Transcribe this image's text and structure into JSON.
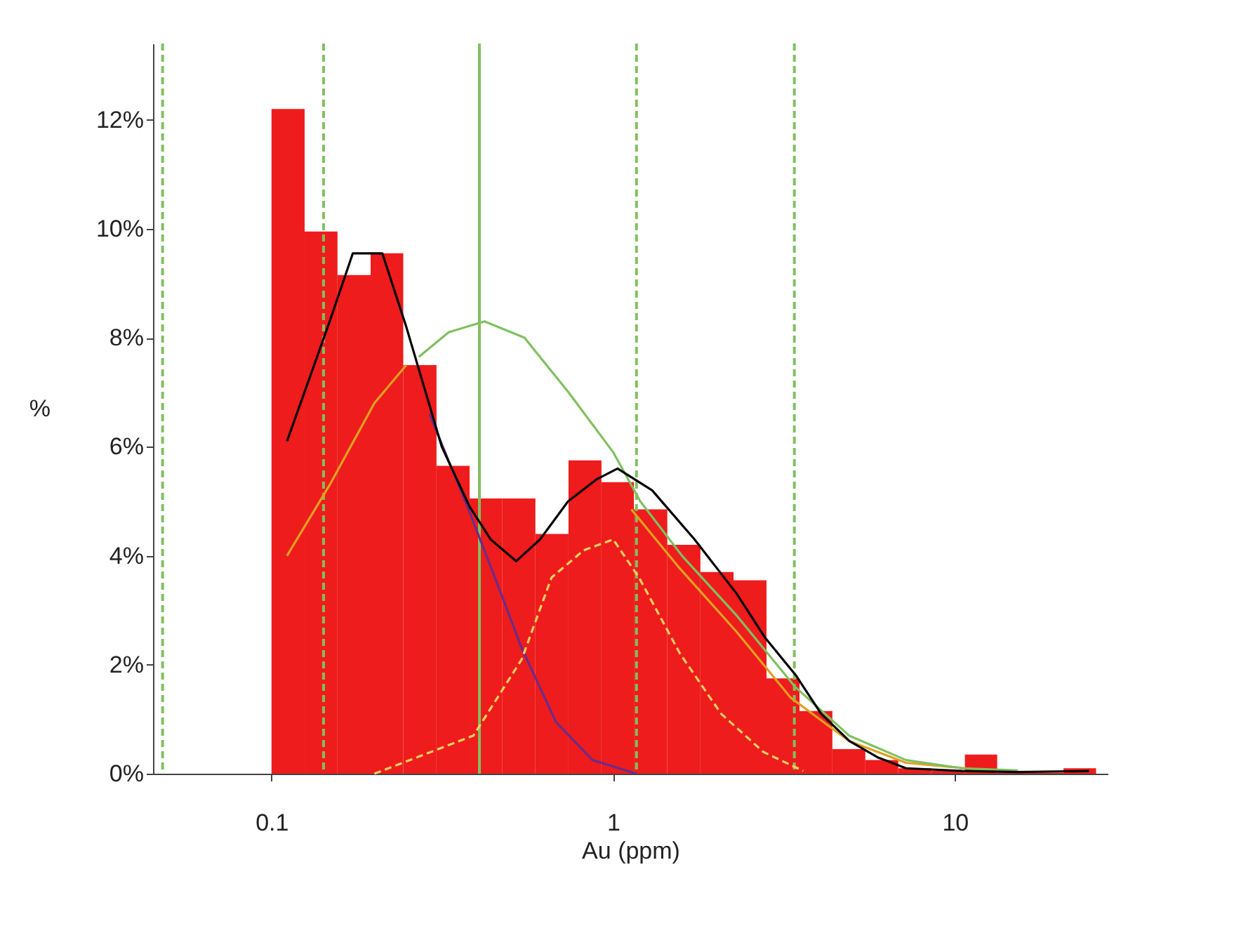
{
  "chart_data": {
    "type": "histogram",
    "xlabel": "Au (ppm)",
    "ylabel": "%",
    "color": "#ee1c1c",
    "bins": [
      0.1,
      0.125,
      0.156,
      0.195,
      0.243,
      0.304,
      0.38,
      0.474,
      0.592,
      0.74,
      0.924,
      1.15,
      1.44,
      1.8,
      2.25,
      2.81,
      3.51,
      4.38,
      5.47,
      6.83,
      8.53,
      10.7,
      13.3,
      16.6,
      20.8,
      25.9
    ],
    "values": [
      12.2,
      9.95,
      9.15,
      9.55,
      7.5,
      5.65,
      5.05,
      5.05,
      4.4,
      5.75,
      5.35,
      4.85,
      4.2,
      3.7,
      3.55,
      1.75,
      1.15,
      0.45,
      0.25,
      0.1,
      0.05,
      0.35,
      0.02,
      0.02,
      0.1
    ],
    "series": [
      {
        "type": "line",
        "color": "#e0a020",
        "line_style": "solid",
        "x": [
          0.111,
          0.148,
          0.2,
          0.248
        ],
        "values": [
          4.0,
          5.3,
          6.8,
          7.5
        ]
      },
      {
        "type": "line",
        "color": "#e0a020",
        "line_style": "solid",
        "x": [
          1.13,
          1.55,
          2.3,
          3.3,
          4.9,
          7.2,
          13.0
        ],
        "values": [
          4.85,
          3.8,
          2.6,
          1.4,
          0.6,
          0.2,
          0.05
        ]
      },
      {
        "type": "line",
        "color": "#80c060",
        "line_style": "solid",
        "x": [
          0.27,
          0.33,
          0.42,
          0.55,
          0.74,
          1.0,
          1.2,
          1.59,
          2.3,
          3.4,
          4.9,
          7.2,
          10.5,
          15.3
        ],
        "values": [
          7.65,
          8.1,
          8.3,
          8.0,
          7.0,
          5.9,
          5.0,
          4.0,
          2.9,
          1.6,
          0.7,
          0.25,
          0.1,
          0.06
        ]
      },
      {
        "type": "line",
        "color": "#6a2c8c",
        "line_style": "solid",
        "x": [
          0.29,
          0.38,
          0.47,
          0.54,
          0.68,
          0.87,
          1.17
        ],
        "values": [
          6.6,
          4.8,
          3.3,
          2.3,
          0.95,
          0.25,
          0.0
        ]
      },
      {
        "type": "line",
        "color": "#f0d060",
        "line_style": "dashed",
        "x": [
          0.2,
          0.39,
          0.54,
          0.66,
          0.82,
          1.0,
          1.19,
          1.57,
          2.07,
          2.75,
          3.6
        ],
        "values": [
          0.0,
          0.7,
          2.1,
          3.6,
          4.1,
          4.3,
          3.6,
          2.2,
          1.1,
          0.4,
          0.05
        ]
      },
      {
        "type": "line",
        "color": "#000000",
        "line_style": "solid",
        "x": [
          0.111,
          0.148,
          0.173,
          0.211,
          0.248,
          0.315,
          0.38,
          0.438,
          0.52,
          0.611,
          0.738,
          0.893,
          1.03,
          1.3,
          1.73,
          2.3,
          2.78,
          3.43,
          4.06,
          4.91,
          5.94,
          7.19,
          10.5,
          15.3,
          24.7
        ],
        "values": [
          6.1,
          8.3,
          9.55,
          9.55,
          8.2,
          6.0,
          4.9,
          4.3,
          3.9,
          4.3,
          5.0,
          5.4,
          5.6,
          5.2,
          4.3,
          3.3,
          2.5,
          1.8,
          1.1,
          0.6,
          0.3,
          0.1,
          0.05,
          0.03,
          0.05
        ]
      }
    ],
    "ref_lines": [
      {
        "axis": "x",
        "value": 0.048,
        "color": "#80c060",
        "line_style": "dashed"
      },
      {
        "axis": "x",
        "value": 0.142,
        "color": "#80c060",
        "line_style": "dashed"
      },
      {
        "axis": "x",
        "value": 0.406,
        "color": "#80c060",
        "line_style": "solid"
      },
      {
        "axis": "x",
        "value": 1.17,
        "color": "#80c060",
        "line_style": "dashed"
      },
      {
        "axis": "x",
        "value": 3.39,
        "color": "#80c060",
        "line_style": "dashed"
      }
    ],
    "log": "x",
    "xlim": [
      0.045,
      28
    ],
    "ylim": [
      0,
      13.4
    ],
    "xticks": [
      0.1,
      1,
      10
    ],
    "yticks": [
      {
        "value": 0,
        "label": "0%"
      },
      {
        "value": 2,
        "label": "2%"
      },
      {
        "value": 4,
        "label": "4%"
      },
      {
        "value": 6,
        "label": "6%"
      },
      {
        "value": 8,
        "label": "8%"
      },
      {
        "value": 10,
        "label": "10%"
      },
      {
        "value": 12,
        "label": "12%"
      }
    ],
    "grid": false
  }
}
